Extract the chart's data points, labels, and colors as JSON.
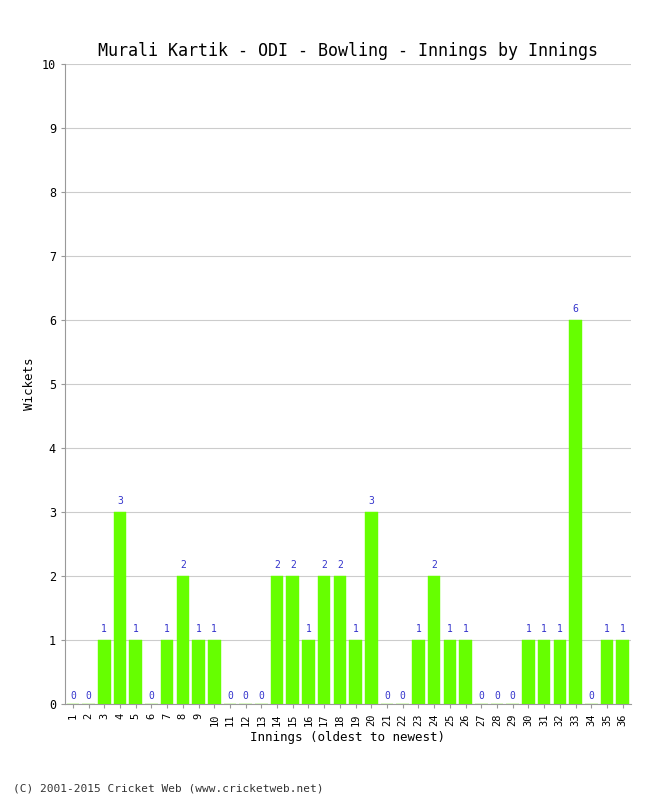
{
  "title": "Murali Kartik - ODI - Bowling - Innings by Innings",
  "xlabel": "Innings (oldest to newest)",
  "ylabel": "Wickets",
  "innings": [
    1,
    2,
    3,
    4,
    5,
    6,
    7,
    8,
    9,
    10,
    11,
    12,
    13,
    14,
    15,
    16,
    17,
    18,
    19,
    20,
    21,
    22,
    23,
    24,
    25,
    26,
    27,
    28,
    29,
    30,
    31,
    32,
    33,
    34,
    35,
    36
  ],
  "wickets": [
    0,
    0,
    1,
    3,
    1,
    0,
    1,
    2,
    1,
    1,
    0,
    0,
    0,
    2,
    2,
    1,
    2,
    2,
    1,
    3,
    0,
    0,
    1,
    2,
    1,
    1,
    0,
    0,
    0,
    1,
    1,
    1,
    6,
    0,
    1,
    1
  ],
  "bar_color": "#66ff00",
  "bar_edge_color": "#66ff00",
  "label_color": "#3333cc",
  "ylim": [
    0,
    10
  ],
  "yticks": [
    0,
    1,
    2,
    3,
    4,
    5,
    6,
    7,
    8,
    9,
    10
  ],
  "background_color": "#ffffff",
  "grid_color": "#cccccc",
  "title_fontsize": 12,
  "axis_label_fontsize": 9,
  "tick_label_fontsize": 7.5,
  "bar_label_fontsize": 7,
  "footer": "(C) 2001-2015 Cricket Web (www.cricketweb.net)",
  "footer_fontsize": 8
}
